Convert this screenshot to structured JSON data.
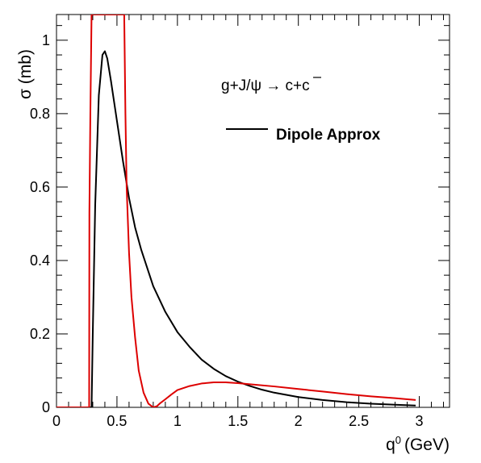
{
  "chart_data": {
    "type": "line",
    "title": "",
    "xlabel_main": "q",
    "xlabel_sup": "0",
    "xlabel_unit": "(GeV)",
    "ylabel": "σ (mb)",
    "xlim": [
      0,
      3.25
    ],
    "ylim": [
      0,
      1.07
    ],
    "grid": false,
    "x_ticks": [
      0,
      0.5,
      1,
      1.5,
      2,
      2.5,
      3
    ],
    "x_tick_labels": [
      "0",
      "0.5",
      "1",
      "1.5",
      "2",
      "2.5",
      "3"
    ],
    "y_ticks": [
      0,
      0.2,
      0.4,
      0.6,
      0.8,
      1
    ],
    "y_tick_labels": [
      "0",
      "0.2",
      "0.4",
      "0.6",
      "0.8",
      "1"
    ],
    "annotation": {
      "process_prefix": "g+J/ψ → c+",
      "process_cbar": "c"
    },
    "legend": {
      "placement": "top-right",
      "entries": [
        {
          "label": "Dipole Approx",
          "color": "#000000"
        }
      ]
    },
    "series": [
      {
        "color": "#000000",
        "x": [
          0,
          0.29,
          0.3,
          0.32,
          0.35,
          0.38,
          0.4,
          0.42,
          0.45,
          0.5,
          0.55,
          0.6,
          0.65,
          0.7,
          0.8,
          0.9,
          1.0,
          1.1,
          1.2,
          1.3,
          1.4,
          1.5,
          1.6,
          1.7,
          1.8,
          2.0,
          2.2,
          2.4,
          2.6,
          2.8,
          2.97
        ],
        "y": [
          0,
          0,
          0.2,
          0.55,
          0.85,
          0.96,
          0.97,
          0.95,
          0.89,
          0.78,
          0.67,
          0.57,
          0.49,
          0.43,
          0.33,
          0.26,
          0.205,
          0.165,
          0.13,
          0.105,
          0.085,
          0.07,
          0.058,
          0.048,
          0.04,
          0.028,
          0.02,
          0.014,
          0.01,
          0.007,
          0.005
        ]
      },
      {
        "color": "#dd0000",
        "x": [
          0,
          0.27,
          0.272,
          0.28,
          0.29,
          0.56,
          0.57,
          0.58,
          0.6,
          0.62,
          0.65,
          0.68,
          0.72,
          0.76,
          0.8,
          0.83,
          0.86,
          0.9,
          0.95,
          1.0,
          1.1,
          1.2,
          1.3,
          1.4,
          1.5,
          1.6,
          1.8,
          2.0,
          2.2,
          2.4,
          2.6,
          2.8,
          2.97
        ],
        "y": [
          0,
          0,
          0.53,
          0.8,
          1.07,
          1.07,
          0.8,
          0.6,
          0.42,
          0.3,
          0.19,
          0.1,
          0.04,
          0.01,
          0.0,
          0.003,
          0.012,
          0.022,
          0.035,
          0.047,
          0.058,
          0.065,
          0.068,
          0.068,
          0.066,
          0.063,
          0.057,
          0.05,
          0.043,
          0.036,
          0.03,
          0.025,
          0.02
        ]
      }
    ]
  }
}
